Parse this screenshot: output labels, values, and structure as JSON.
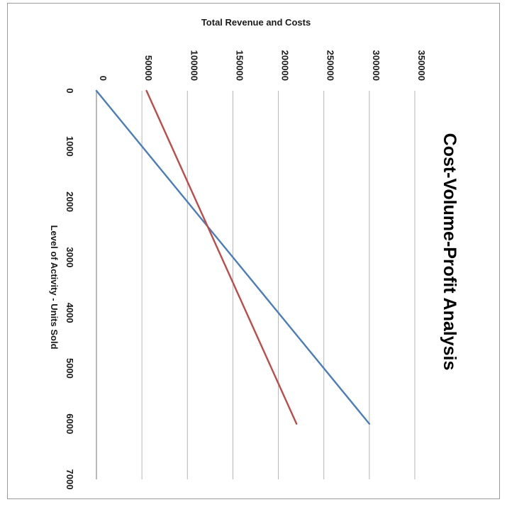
{
  "chart_data": {
    "type": "line",
    "title": "Cost-Volume-Profit Analysis",
    "xlabel": "Level of Activity - Units Sold",
    "ylabel": "Total Revenue and Costs",
    "xlim": [
      0,
      7000
    ],
    "ylim": [
      0,
      350000
    ],
    "x_ticks": [
      "0",
      "1000",
      "2000",
      "3000",
      "4000",
      "5000",
      "6000",
      "7000"
    ],
    "y_ticks": [
      "0",
      "50000",
      "100000",
      "150000",
      "200000",
      "250000",
      "300000",
      "350000"
    ],
    "grid": true,
    "orientation": "rotated 90° clockwise",
    "series": [
      {
        "color": "#4a7ebb",
        "x": [
          0,
          6000
        ],
        "y": [
          0,
          300000
        ]
      },
      {
        "color": "#be4b48",
        "x": [
          0,
          6000
        ],
        "y": [
          55000,
          220000
        ]
      }
    ]
  }
}
